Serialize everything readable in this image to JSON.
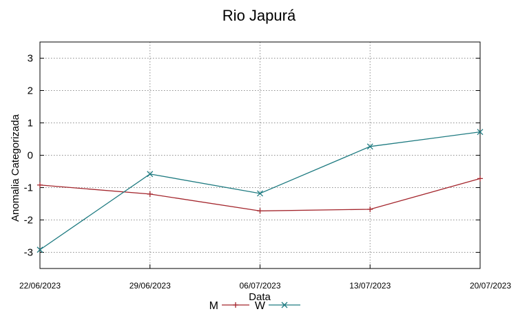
{
  "chart_data": {
    "type": "line",
    "title": "Rio Japurá",
    "xlabel": "Data",
    "ylabel": "Anomalia Categorizada",
    "categories": [
      "22/06/2023",
      "29/06/2023",
      "06/07/2023",
      "13/07/2023",
      "20/07/2023"
    ],
    "yticks": [
      "3",
      "2",
      "1",
      "0",
      "-1",
      "-2",
      "-3"
    ],
    "ylim": [
      -3.5,
      3.5
    ],
    "grid": true,
    "legend_position": "bottom-center",
    "series": [
      {
        "name": "M",
        "color": "#a3242b",
        "marker": "plus",
        "values": [
          -0.92,
          -1.2,
          -1.72,
          -1.67,
          -0.72
        ]
      },
      {
        "name": "W",
        "color": "#1d7a80",
        "marker": "cross",
        "values": [
          -2.92,
          -0.58,
          -1.18,
          0.27,
          0.72
        ]
      }
    ]
  }
}
